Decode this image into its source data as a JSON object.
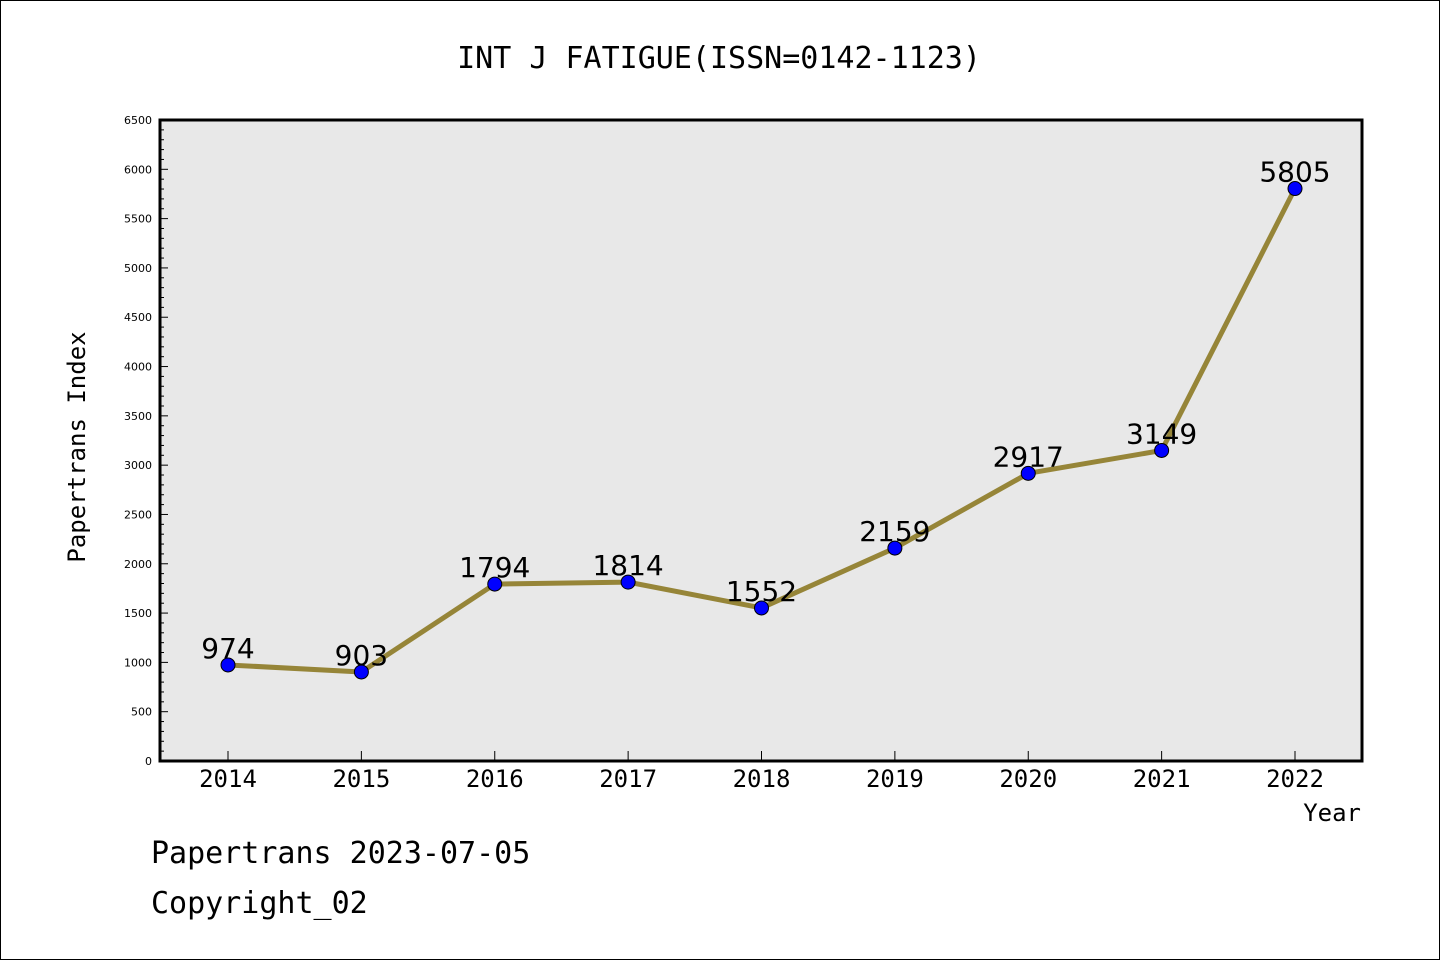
{
  "chart_data": {
    "type": "line",
    "title": "INT J FATIGUE(ISSN=0142-1123)",
    "xlabel": "Year",
    "ylabel": "Papertrans Index",
    "categories": [
      "2014",
      "2015",
      "2016",
      "2017",
      "2018",
      "2019",
      "2020",
      "2021",
      "2022"
    ],
    "values": [
      974,
      903,
      1794,
      1814,
      1552,
      2159,
      2917,
      3149,
      5805
    ],
    "y_ticks": [
      0,
      500,
      1000,
      1500,
      2000,
      2500,
      3000,
      3500,
      4000,
      4500,
      5000,
      5500,
      6000,
      6500
    ],
    "ylim": [
      0,
      6500
    ],
    "grid": false,
    "data_labels": true,
    "colors": {
      "line": "#968538",
      "marker": "#0000ff",
      "plot_bg": "#e8e8e8"
    }
  },
  "footer": {
    "line1": "Papertrans 2023-07-05",
    "line2": "Copyright_02"
  }
}
